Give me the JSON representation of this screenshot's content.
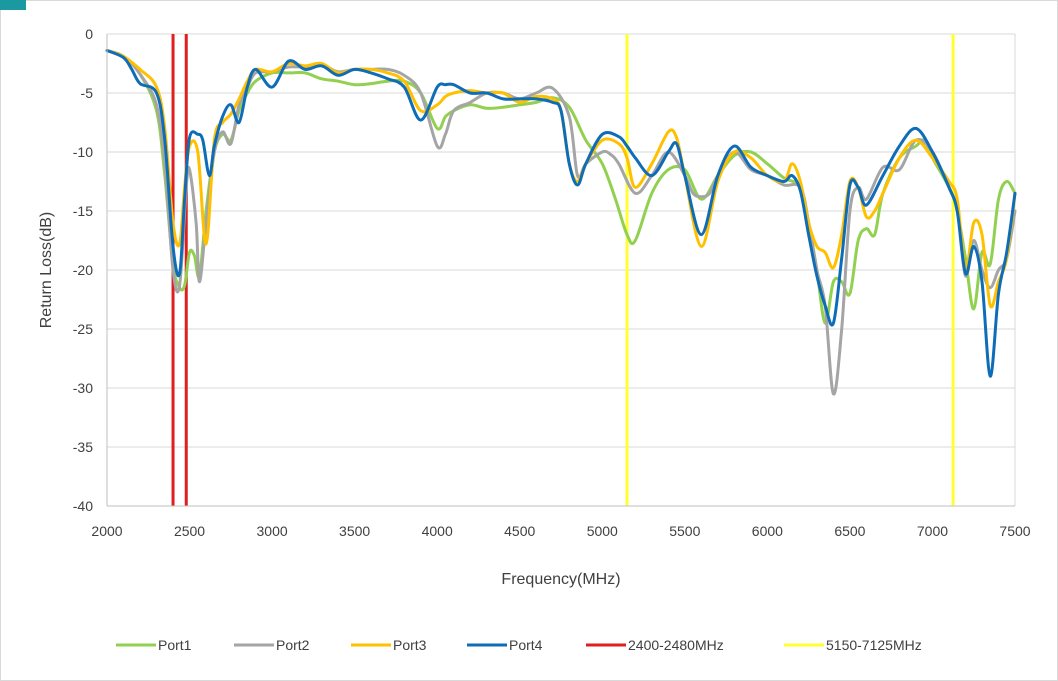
{
  "chart_data": {
    "type": "line",
    "title": "",
    "xlabel": "Frequency(MHz)",
    "ylabel": "Return Loss(dB)",
    "xlim": [
      2000,
      7500
    ],
    "ylim": [
      -40,
      0
    ],
    "x_ticks": [
      "2000",
      "2500",
      "3000",
      "3500",
      "4000",
      "4500",
      "5000",
      "5500",
      "6000",
      "6500",
      "7000",
      "7500"
    ],
    "y_ticks": [
      "0",
      "-5",
      "-10",
      "-15",
      "-20",
      "-25",
      "-30",
      "-35",
      "-40"
    ],
    "grid": "horizontal",
    "legend_position": "bottom",
    "series": [
      {
        "name": "Port1",
        "color": "#92d050",
        "points": [
          [
            2000,
            -1.4
          ],
          [
            2100,
            -1.9
          ],
          [
            2200,
            -3.4
          ],
          [
            2300,
            -6.5
          ],
          [
            2350,
            -12
          ],
          [
            2400,
            -19.5
          ],
          [
            2440,
            -21.5
          ],
          [
            2470,
            -21.3
          ],
          [
            2500,
            -18.5
          ],
          [
            2530,
            -18.8
          ],
          [
            2560,
            -20.5
          ],
          [
            2600,
            -15
          ],
          [
            2650,
            -10
          ],
          [
            2700,
            -8.5
          ],
          [
            2750,
            -9
          ],
          [
            2800,
            -6.5
          ],
          [
            2850,
            -5
          ],
          [
            2900,
            -4
          ],
          [
            3000,
            -3.3
          ],
          [
            3100,
            -3.3
          ],
          [
            3200,
            -3.3
          ],
          [
            3300,
            -3.8
          ],
          [
            3400,
            -4
          ],
          [
            3500,
            -4.3
          ],
          [
            3600,
            -4.2
          ],
          [
            3700,
            -4
          ],
          [
            3800,
            -4
          ],
          [
            3900,
            -5
          ],
          [
            4000,
            -8
          ],
          [
            4050,
            -7
          ],
          [
            4100,
            -6.5
          ],
          [
            4200,
            -6
          ],
          [
            4300,
            -6.3
          ],
          [
            4400,
            -6.2
          ],
          [
            4500,
            -6
          ],
          [
            4600,
            -5.8
          ],
          [
            4700,
            -5.4
          ],
          [
            4800,
            -6.2
          ],
          [
            4900,
            -9
          ],
          [
            5000,
            -11
          ],
          [
            5080,
            -14
          ],
          [
            5150,
            -17
          ],
          [
            5200,
            -17.5
          ],
          [
            5300,
            -13.5
          ],
          [
            5400,
            -11.5
          ],
          [
            5500,
            -11.5
          ],
          [
            5600,
            -14
          ],
          [
            5700,
            -12
          ],
          [
            5800,
            -10.3
          ],
          [
            5900,
            -10
          ],
          [
            6000,
            -11
          ],
          [
            6100,
            -12.2
          ],
          [
            6200,
            -13
          ],
          [
            6250,
            -16
          ],
          [
            6300,
            -20
          ],
          [
            6350,
            -24.5
          ],
          [
            6400,
            -21
          ],
          [
            6450,
            -21
          ],
          [
            6500,
            -22
          ],
          [
            6550,
            -17.5
          ],
          [
            6600,
            -16.5
          ],
          [
            6650,
            -17
          ],
          [
            6700,
            -13.5
          ],
          [
            6800,
            -10.5
          ],
          [
            6900,
            -9.5
          ],
          [
            6950,
            -9
          ],
          [
            7000,
            -10.5
          ],
          [
            7100,
            -13
          ],
          [
            7150,
            -15
          ],
          [
            7200,
            -19
          ],
          [
            7250,
            -23.3
          ],
          [
            7300,
            -18.5
          ],
          [
            7350,
            -19.5
          ],
          [
            7400,
            -14
          ],
          [
            7450,
            -12.5
          ],
          [
            7500,
            -13.5
          ]
        ]
      },
      {
        "name": "Port2",
        "color": "#a5a5a5",
        "points": [
          [
            2000,
            -1.4
          ],
          [
            2100,
            -1.9
          ],
          [
            2200,
            -3.4
          ],
          [
            2300,
            -6
          ],
          [
            2350,
            -11
          ],
          [
            2400,
            -20
          ],
          [
            2440,
            -21.3
          ],
          [
            2480,
            -13
          ],
          [
            2500,
            -11.5
          ],
          [
            2540,
            -16
          ],
          [
            2560,
            -21
          ],
          [
            2600,
            -16
          ],
          [
            2650,
            -10
          ],
          [
            2700,
            -8.3
          ],
          [
            2750,
            -9.3
          ],
          [
            2800,
            -6
          ],
          [
            2850,
            -4.5
          ],
          [
            2900,
            -3.3
          ],
          [
            3000,
            -3.2
          ],
          [
            3100,
            -2.8
          ],
          [
            3200,
            -2.8
          ],
          [
            3300,
            -2.6
          ],
          [
            3400,
            -3.2
          ],
          [
            3500,
            -3
          ],
          [
            3600,
            -3
          ],
          [
            3700,
            -3
          ],
          [
            3800,
            -3.5
          ],
          [
            3900,
            -5
          ],
          [
            4000,
            -9.5
          ],
          [
            4050,
            -8.5
          ],
          [
            4100,
            -6.5
          ],
          [
            4200,
            -5.8
          ],
          [
            4300,
            -5
          ],
          [
            4400,
            -5
          ],
          [
            4500,
            -5.5
          ],
          [
            4600,
            -5
          ],
          [
            4700,
            -4.6
          ],
          [
            4800,
            -7
          ],
          [
            4850,
            -12
          ],
          [
            4900,
            -11
          ],
          [
            5000,
            -10
          ],
          [
            5050,
            -10.2
          ],
          [
            5100,
            -11
          ],
          [
            5200,
            -13.5
          ],
          [
            5300,
            -12
          ],
          [
            5400,
            -10
          ],
          [
            5500,
            -12
          ],
          [
            5550,
            -13.5
          ],
          [
            5600,
            -13.8
          ],
          [
            5650,
            -13.5
          ],
          [
            5700,
            -12
          ],
          [
            5800,
            -10
          ],
          [
            5900,
            -11.5
          ],
          [
            6000,
            -12
          ],
          [
            6100,
            -12.8
          ],
          [
            6200,
            -13
          ],
          [
            6250,
            -16
          ],
          [
            6300,
            -20
          ],
          [
            6350,
            -23
          ],
          [
            6400,
            -30.5
          ],
          [
            6450,
            -25
          ],
          [
            6500,
            -15
          ],
          [
            6550,
            -13
          ],
          [
            6600,
            -14
          ],
          [
            6700,
            -11.3
          ],
          [
            6800,
            -11.5
          ],
          [
            6900,
            -9
          ],
          [
            7000,
            -10
          ],
          [
            7100,
            -13
          ],
          [
            7150,
            -15
          ],
          [
            7200,
            -20.5
          ],
          [
            7250,
            -17.5
          ],
          [
            7300,
            -20
          ],
          [
            7350,
            -21.5
          ],
          [
            7400,
            -20
          ],
          [
            7450,
            -19
          ],
          [
            7500,
            -15
          ]
        ]
      },
      {
        "name": "Port3",
        "color": "#ffc000",
        "points": [
          [
            2000,
            -1.4
          ],
          [
            2100,
            -1.9
          ],
          [
            2200,
            -3
          ],
          [
            2300,
            -4.5
          ],
          [
            2350,
            -8
          ],
          [
            2400,
            -16
          ],
          [
            2440,
            -17.8
          ],
          [
            2470,
            -13
          ],
          [
            2500,
            -9.5
          ],
          [
            2550,
            -10
          ],
          [
            2600,
            -17.8
          ],
          [
            2650,
            -9
          ],
          [
            2700,
            -7.5
          ],
          [
            2750,
            -6.8
          ],
          [
            2800,
            -5.5
          ],
          [
            2850,
            -4
          ],
          [
            2900,
            -3
          ],
          [
            3000,
            -3.2
          ],
          [
            3100,
            -2.5
          ],
          [
            3200,
            -2.7
          ],
          [
            3300,
            -2.5
          ],
          [
            3400,
            -3.3
          ],
          [
            3500,
            -3
          ],
          [
            3600,
            -3
          ],
          [
            3700,
            -3.3
          ],
          [
            3800,
            -4
          ],
          [
            3900,
            -6.5
          ],
          [
            4000,
            -6
          ],
          [
            4050,
            -5.3
          ],
          [
            4100,
            -5
          ],
          [
            4200,
            -4.8
          ],
          [
            4300,
            -5
          ],
          [
            4400,
            -5
          ],
          [
            4500,
            -5.8
          ],
          [
            4600,
            -5.3
          ],
          [
            4700,
            -5.5
          ],
          [
            4750,
            -6.5
          ],
          [
            4800,
            -11
          ],
          [
            4850,
            -12.5
          ],
          [
            4900,
            -11
          ],
          [
            5000,
            -9
          ],
          [
            5100,
            -9.3
          ],
          [
            5150,
            -10.5
          ],
          [
            5200,
            -13
          ],
          [
            5300,
            -11
          ],
          [
            5400,
            -8.3
          ],
          [
            5450,
            -8.8
          ],
          [
            5500,
            -12
          ],
          [
            5600,
            -18
          ],
          [
            5700,
            -12.5
          ],
          [
            5800,
            -10
          ],
          [
            5900,
            -10.5
          ],
          [
            6000,
            -12
          ],
          [
            6100,
            -12.5
          ],
          [
            6150,
            -11
          ],
          [
            6200,
            -12.5
          ],
          [
            6250,
            -16
          ],
          [
            6300,
            -18
          ],
          [
            6350,
            -18.5
          ],
          [
            6400,
            -19.8
          ],
          [
            6450,
            -17
          ],
          [
            6500,
            -12.5
          ],
          [
            6550,
            -13
          ],
          [
            6600,
            -15.5
          ],
          [
            6650,
            -15
          ],
          [
            6700,
            -13.5
          ],
          [
            6800,
            -10.5
          ],
          [
            6900,
            -9
          ],
          [
            7000,
            -10.5
          ],
          [
            7100,
            -12.5
          ],
          [
            7150,
            -14
          ],
          [
            7200,
            -20
          ],
          [
            7250,
            -16
          ],
          [
            7300,
            -17
          ],
          [
            7350,
            -23
          ],
          [
            7400,
            -21
          ],
          [
            7450,
            -19
          ],
          [
            7500,
            -13.5
          ]
        ]
      },
      {
        "name": "Port4",
        "color": "#0f6db7",
        "points": [
          [
            2000,
            -1.4
          ],
          [
            2100,
            -2
          ],
          [
            2150,
            -3
          ],
          [
            2200,
            -4.2
          ],
          [
            2300,
            -5
          ],
          [
            2350,
            -9
          ],
          [
            2400,
            -18
          ],
          [
            2440,
            -20.3
          ],
          [
            2470,
            -14
          ],
          [
            2500,
            -8.8
          ],
          [
            2550,
            -8.5
          ],
          [
            2580,
            -9
          ],
          [
            2620,
            -12
          ],
          [
            2650,
            -9.5
          ],
          [
            2700,
            -7
          ],
          [
            2750,
            -6
          ],
          [
            2800,
            -7.5
          ],
          [
            2850,
            -4.5
          ],
          [
            2900,
            -3
          ],
          [
            3000,
            -4.5
          ],
          [
            3100,
            -2.3
          ],
          [
            3200,
            -3
          ],
          [
            3300,
            -2.7
          ],
          [
            3400,
            -3.5
          ],
          [
            3500,
            -3
          ],
          [
            3600,
            -3.3
          ],
          [
            3700,
            -3.8
          ],
          [
            3800,
            -4.5
          ],
          [
            3900,
            -7.3
          ],
          [
            4000,
            -4.5
          ],
          [
            4050,
            -4.3
          ],
          [
            4100,
            -4.3
          ],
          [
            4200,
            -5
          ],
          [
            4300,
            -5
          ],
          [
            4400,
            -5.5
          ],
          [
            4500,
            -5.5
          ],
          [
            4600,
            -5.5
          ],
          [
            4700,
            -5.8
          ],
          [
            4750,
            -6.5
          ],
          [
            4800,
            -11
          ],
          [
            4850,
            -12.8
          ],
          [
            4900,
            -11
          ],
          [
            5000,
            -8.5
          ],
          [
            5100,
            -8.7
          ],
          [
            5150,
            -9.5
          ],
          [
            5200,
            -10.5
          ],
          [
            5300,
            -12
          ],
          [
            5400,
            -10
          ],
          [
            5450,
            -9.3
          ],
          [
            5500,
            -12
          ],
          [
            5600,
            -17
          ],
          [
            5700,
            -12
          ],
          [
            5800,
            -9.5
          ],
          [
            5900,
            -11.3
          ],
          [
            6000,
            -12
          ],
          [
            6100,
            -12.5
          ],
          [
            6150,
            -12
          ],
          [
            6200,
            -13.3
          ],
          [
            6250,
            -17
          ],
          [
            6300,
            -20.5
          ],
          [
            6350,
            -23
          ],
          [
            6400,
            -24.5
          ],
          [
            6450,
            -19
          ],
          [
            6500,
            -12.8
          ],
          [
            6550,
            -13
          ],
          [
            6600,
            -14.5
          ],
          [
            6700,
            -12
          ],
          [
            6800,
            -9.5
          ],
          [
            6900,
            -8
          ],
          [
            7000,
            -10
          ],
          [
            7100,
            -13
          ],
          [
            7150,
            -15
          ],
          [
            7200,
            -20.3
          ],
          [
            7250,
            -18
          ],
          [
            7300,
            -21
          ],
          [
            7350,
            -29
          ],
          [
            7400,
            -22
          ],
          [
            7450,
            -18.5
          ],
          [
            7500,
            -13.5
          ]
        ]
      },
      {
        "name": "2400-2480MHz",
        "color": "#e11e1e",
        "vlines": [
          2400,
          2480
        ]
      },
      {
        "name": "5150-7125MHz",
        "color": "#ffff33",
        "vlines": [
          5150,
          7125
        ]
      }
    ]
  }
}
